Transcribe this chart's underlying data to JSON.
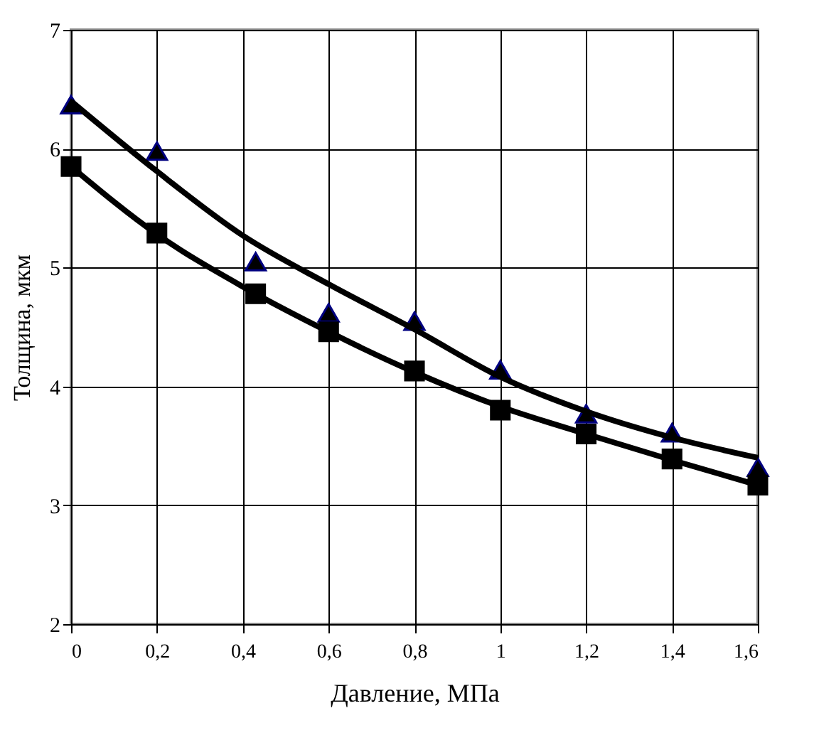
{
  "chart_data": {
    "type": "scatter",
    "xlabel": "Давление, МПа",
    "ylabel": "Толщина, мкм",
    "x": [
      0,
      0.2,
      0.43,
      0.6,
      0.8,
      1.0,
      1.2,
      1.4,
      1.6
    ],
    "series": [
      {
        "marker": "triangle",
        "color": "#000000",
        "values": [
          6.37,
          5.98,
          5.05,
          4.62,
          4.55,
          4.14,
          3.77,
          3.61,
          3.32
        ]
      },
      {
        "marker": "square",
        "color": "#000000",
        "values": [
          5.85,
          5.29,
          4.78,
          4.46,
          4.13,
          3.8,
          3.6,
          3.39,
          3.17
        ]
      },
      {
        "type": "line",
        "marker": "none",
        "color": "#000000",
        "x": [
          0,
          0.2,
          0.4,
          0.6,
          0.8,
          1.0,
          1.2,
          1.4,
          1.6
        ],
        "values": [
          6.4,
          5.81,
          5.27,
          4.86,
          4.48,
          4.08,
          3.79,
          3.57,
          3.4
        ]
      },
      {
        "type": "line",
        "marker": "none",
        "color": "#000000",
        "x": [
          0,
          0.2,
          0.4,
          0.6,
          0.8,
          1.0,
          1.2,
          1.4,
          1.6
        ],
        "values": [
          5.85,
          5.28,
          4.84,
          4.46,
          4.12,
          3.83,
          3.6,
          3.38,
          3.17
        ]
      }
    ],
    "xlim": [
      0,
      1.6
    ],
    "xticks": [
      0,
      {
        "value": 0.2,
        "label": "0,2"
      },
      {
        "value": 0.4,
        "label": "0,4"
      },
      {
        "value": 0.6,
        "label": "0,6"
      },
      {
        "value": 0.8,
        "label": "0,8"
      },
      1,
      {
        "value": 1.2,
        "label": "1,2"
      },
      {
        "value": 1.4,
        "label": "1,4"
      },
      {
        "value": 1.6,
        "label": "1,6"
      }
    ],
    "ylim": [
      2,
      7
    ],
    "yticks": [
      2,
      3,
      4,
      5,
      6,
      7
    ],
    "grid": true
  }
}
